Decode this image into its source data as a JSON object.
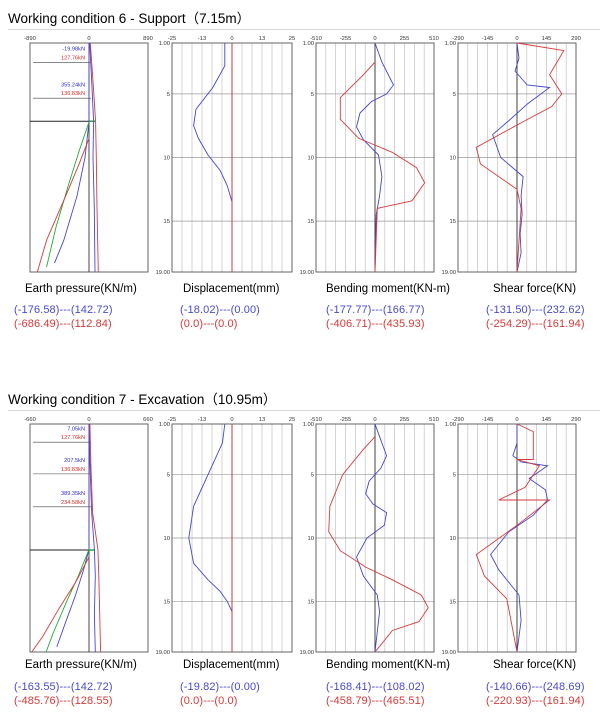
{
  "chart_data": [
    {
      "title": "Working condition 6 - Support（7.15m）",
      "panels": [
        {
          "type": "line",
          "kind": "earth_pressure",
          "ylabel": "Earth pressure(KN/m)",
          "xlim": [
            -890,
            890
          ],
          "xticks": [
            "-890",
            "0",
            "890"
          ],
          "ylim": [
            1.0,
            19.0
          ],
          "yticks": [],
          "annotations": [
            {
              "text": "-19.98kN",
              "color": "#2c2cd0",
              "y": 1.6
            },
            {
              "text": "127.76kN",
              "color": "#d82828",
              "y": 2.3
            },
            {
              "text": "355.24kN",
              "color": "#2c2cd0",
              "y": 4.4
            },
            {
              "text": "136.83kN",
              "color": "#d82828",
              "y": 5.1
            }
          ],
          "excavation_depth": 7.15,
          "series": [
            {
              "name": "left-blue",
              "color": "#4646d2",
              "x": [
                0,
                0,
                -60,
                -180,
                -380,
                -520
              ],
              "y": [
                1.0,
                7.2,
                10.0,
                13.0,
                16.5,
                18.3
              ]
            },
            {
              "name": "left-green",
              "color": "#22aa33",
              "x": [
                0,
                -150,
                -300,
                -500,
                -640
              ],
              "y": [
                7.2,
                9.5,
                12.0,
                15.5,
                18.6
              ]
            },
            {
              "name": "left-red",
              "color": "#d83a3a",
              "x": [
                0,
                -150,
                -350,
                -640,
                -780
              ],
              "y": [
                8.5,
                10.5,
                13.0,
                16.5,
                19.0
              ]
            },
            {
              "name": "right-blue",
              "color": "#4646d2",
              "x": [
                10,
                40,
                70,
                60,
                80,
                90
              ],
              "y": [
                1.0,
                4.0,
                7.2,
                10.0,
                14.0,
                19.0
              ]
            },
            {
              "name": "right-red",
              "color": "#d83a3a",
              "x": [
                20,
                60,
                100,
                110,
                120,
                140
              ],
              "y": [
                1.0,
                4.0,
                7.2,
                10.0,
                14.0,
                19.0
              ]
            }
          ]
        },
        {
          "type": "line",
          "kind": "displacement",
          "ylabel": "Displacement(mm)",
          "xlim": [
            -25,
            25
          ],
          "xticks": [
            "-25",
            "-13",
            "0",
            "13",
            "25"
          ],
          "ylim": [
            1.0,
            19.0
          ],
          "yticks": [
            "1.00",
            "5",
            "10",
            "15",
            "19.00"
          ],
          "series": [
            {
              "name": "blue",
              "color": "#4646d2",
              "x": [
                -3,
                -3,
                -8,
                -15,
                -16,
                -14,
                -10,
                -5,
                -2,
                0,
                0
              ],
              "y": [
                1.0,
                2.8,
                4.5,
                6.2,
                7.5,
                8.5,
                9.8,
                11.0,
                12.2,
                13.5,
                19.0
              ]
            },
            {
              "name": "red",
              "color": "#d83a3a",
              "x": [
                0,
                0
              ],
              "y": [
                1.0,
                19.0
              ]
            }
          ]
        },
        {
          "type": "line",
          "kind": "bending_moment",
          "ylabel": "Bending moment(KN-m)",
          "xlim": [
            -510,
            510
          ],
          "xticks": [
            "-510",
            "-255",
            "0",
            "255",
            "510"
          ],
          "ylim": [
            1.0,
            19.0
          ],
          "yticks": [
            "1.00",
            "5",
            "10",
            "15",
            "19.00"
          ],
          "series": [
            {
              "name": "blue",
              "color": "#4646d2",
              "x": [
                0,
                60,
                160,
                100,
                -30,
                -130,
                -160,
                -100,
                30,
                60,
                40,
                10,
                0
              ],
              "y": [
                1.0,
                2.5,
                4.3,
                5.0,
                5.6,
                6.5,
                7.6,
                8.6,
                9.8,
                11.5,
                13.0,
                14.5,
                19.0
              ]
            },
            {
              "name": "red",
              "color": "#d83a3a",
              "x": [
                0,
                -100,
                -300,
                -300,
                -140,
                150,
                360,
                430,
                320,
                20,
                0
              ],
              "y": [
                2.5,
                3.5,
                5.3,
                7.0,
                8.5,
                9.6,
                10.8,
                12.0,
                13.4,
                14.0,
                19.0
              ]
            }
          ]
        },
        {
          "type": "line",
          "kind": "shear_force",
          "ylabel": "Shear force(KN)",
          "xlim": [
            -290,
            290
          ],
          "xticks": [
            "-290",
            "-145",
            "0",
            "145",
            "290"
          ],
          "ylim": [
            1.0,
            19.0
          ],
          "yticks": [
            "1.00",
            "5",
            "10",
            "15",
            "19.00"
          ],
          "series": [
            {
              "name": "blue",
              "color": "#4646d2",
              "x": [
                0,
                10,
                -10,
                50,
                160,
                50,
                -40,
                -120,
                -80,
                30,
                20,
                25,
                15,
                20,
                0
              ],
              "y": [
                1.0,
                2.2,
                3.2,
                4.3,
                4.5,
                5.8,
                7.1,
                8.2,
                10.0,
                11.5,
                13.0,
                14.5,
                16.0,
                17.5,
                19.0
              ]
            },
            {
              "name": "red",
              "color": "#d83a3a",
              "x": [
                0,
                230,
                160,
                220,
                170,
                40,
                -200,
                -180,
                0,
                20,
                0
              ],
              "y": [
                1.0,
                1.6,
                3.5,
                5.0,
                6.0,
                7.1,
                9.2,
                10.5,
                12.5,
                14.0,
                19.0
              ]
            }
          ]
        }
      ],
      "values": [
        [
          "(-176.58)---(142.72)",
          "(-686.49)---(112.84)"
        ],
        [
          "(-18.02)---(0.00)",
          "(0.0)---(0.0)"
        ],
        [
          "(-177.77)---(166.77)",
          "(-406.71)---(435.93)"
        ],
        [
          "(-131.50)---(232.62)",
          "(-254.29)---(161.94)"
        ]
      ]
    },
    {
      "title": "Working condition 7 - Excavation（10.95m）",
      "panels": [
        {
          "type": "line",
          "kind": "earth_pressure",
          "ylabel": "Earth pressure(KN/m)",
          "xlim": [
            -660,
            660
          ],
          "xticks": [
            "-660",
            "0",
            "660"
          ],
          "ylim": [
            1.0,
            19.0
          ],
          "yticks": [],
          "annotations": [
            {
              "text": "7.05kN",
              "color": "#2c2cd0",
              "y": 1.5
            },
            {
              "text": "127.76kN",
              "color": "#d82828",
              "y": 2.2
            },
            {
              "text": "207.5kN",
              "color": "#2c2cd0",
              "y": 4.0
            },
            {
              "text": "136.83kN",
              "color": "#d82828",
              "y": 4.7
            },
            {
              "text": "389.35kN",
              "color": "#2c2cd0",
              "y": 6.6
            },
            {
              "text": "234.58kN",
              "color": "#d82828",
              "y": 7.3
            }
          ],
          "excavation_depth": 10.95,
          "series": [
            {
              "name": "left-blue",
              "color": "#4646d2",
              "x": [
                0,
                0,
                -60,
                -150,
                -280,
                -360
              ],
              "y": [
                1.0,
                10.9,
                12.5,
                14.5,
                17.0,
                18.6
              ]
            },
            {
              "name": "left-green",
              "color": "#22aa33",
              "x": [
                0,
                -120,
                -250,
                -400,
                -480
              ],
              "y": [
                10.9,
                13.0,
                15.0,
                17.5,
                19.0
              ]
            },
            {
              "name": "left-red",
              "color": "#d83a3a",
              "x": [
                0,
                -150,
                -330,
                -520,
                -640
              ],
              "y": [
                11.5,
                13.5,
                15.5,
                17.8,
                19.0
              ]
            },
            {
              "name": "right-blue",
              "color": "#4646d2",
              "x": [
                5,
                10,
                30,
                60,
                70,
                60,
                70
              ],
              "y": [
                1.0,
                4.0,
                8.0,
                10.9,
                13.0,
                16.0,
                19.0
              ]
            },
            {
              "name": "right-red",
              "color": "#d83a3a",
              "x": [
                10,
                20,
                40,
                100,
                110,
                120,
                130
              ],
              "y": [
                1.0,
                4.0,
                8.0,
                10.9,
                13.0,
                16.0,
                19.0
              ]
            }
          ]
        },
        {
          "type": "line",
          "kind": "displacement",
          "ylabel": "Displacement(mm)",
          "xlim": [
            -25,
            25
          ],
          "xticks": [
            "-25",
            "-13",
            "0",
            "13",
            "25"
          ],
          "ylim": [
            1.0,
            19.0
          ],
          "yticks": [
            "1.00",
            "5",
            "10",
            "15",
            "19.00"
          ],
          "series": [
            {
              "name": "blue",
              "color": "#4646d2",
              "x": [
                -3,
                -4,
                -10,
                -16,
                -18,
                -16,
                -10,
                -5,
                -2,
                0,
                0
              ],
              "y": [
                1.0,
                2.5,
                5.0,
                7.5,
                10.0,
                12.0,
                13.3,
                14.2,
                15.0,
                15.8,
                19.0
              ]
            },
            {
              "name": "red",
              "color": "#d83a3a",
              "x": [
                0,
                0
              ],
              "y": [
                1.0,
                19.0
              ]
            }
          ]
        },
        {
          "type": "line",
          "kind": "bending_moment",
          "ylabel": "Bending moment(KN-m)",
          "xlim": [
            -510,
            510
          ],
          "xticks": [
            "-510",
            "-255",
            "0",
            "255",
            "510"
          ],
          "ylim": [
            1.0,
            19.0
          ],
          "yticks": [
            "1.00",
            "5",
            "10",
            "15",
            "19.00"
          ],
          "series": [
            {
              "name": "blue",
              "color": "#4646d2",
              "x": [
                0,
                40,
                100,
                50,
                -50,
                -80,
                -20,
                100,
                80,
                -70,
                -160,
                -100,
                20,
                40,
                0
              ],
              "y": [
                1.0,
                2.0,
                3.5,
                4.5,
                5.5,
                6.5,
                7.3,
                8.0,
                9.0,
                10.0,
                11.5,
                13.0,
                14.5,
                15.8,
                19.0
              ]
            },
            {
              "name": "red",
              "color": "#d83a3a",
              "x": [
                0,
                -100,
                -280,
                -390,
                -400,
                -300,
                -80,
                150,
                400,
                460,
                380,
                150,
                0
              ],
              "y": [
                2.0,
                3.0,
                5.0,
                7.5,
                9.5,
                11.0,
                12.3,
                13.3,
                14.5,
                15.5,
                16.6,
                17.3,
                19.0
              ]
            }
          ]
        },
        {
          "type": "line",
          "kind": "shear_force",
          "ylabel": "Shear force(KN)",
          "xlim": [
            -290,
            290
          ],
          "xticks": [
            "-290",
            "-145",
            "0",
            "145",
            "290"
          ],
          "ylim": [
            1.0,
            19.0
          ],
          "yticks": [
            "1.00",
            "5",
            "10",
            "15",
            "19.00"
          ],
          "series": [
            {
              "name": "blue",
              "color": "#4646d2",
              "x": [
                0,
                0,
                -20,
                20,
                150,
                60,
                140,
                150,
                80,
                -40,
                -130,
                -90,
                10,
                20,
                0
              ],
              "y": [
                1.0,
                2.5,
                3.5,
                4.0,
                4.3,
                5.3,
                6.2,
                7.0,
                8.2,
                9.5,
                11.3,
                12.5,
                14.5,
                16.5,
                19.0
              ]
            },
            {
              "name": "red",
              "color": "#d83a3a",
              "x": [
                0,
                80,
                80,
                0,
                110,
                40,
                -90,
                160,
                0,
                -200,
                -160,
                -50,
                0
              ],
              "y": [
                1.0,
                1.6,
                3.8,
                3.8,
                4.3,
                6.0,
                7.0,
                7.0,
                9.0,
                11.3,
                13.0,
                14.8,
                19.0
              ]
            }
          ]
        }
      ],
      "values": [
        [
          "(-163.55)---(142.72)",
          "(-485.76)---(128.55)"
        ],
        [
          "(-19.82)---(0.00)",
          "(0.0)---(0.0)"
        ],
        [
          "(-168.41)---(108.02)",
          "(-458.79)---(465.51)"
        ],
        [
          "(-140.66)---(248.69)",
          "(-220.93)---(161.94)"
        ]
      ]
    }
  ]
}
